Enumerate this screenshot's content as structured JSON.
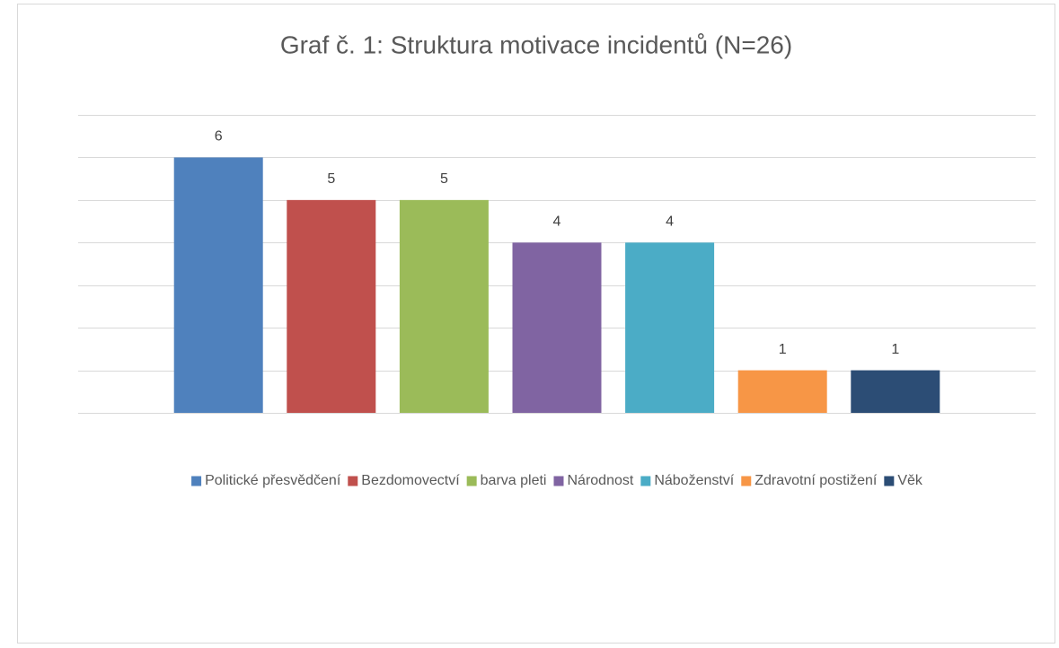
{
  "chart_data": {
    "type": "bar",
    "title": "Graf č. 1: Struktura motivace incidentů (N=26)",
    "series": [
      {
        "name": "Politické přesvědčení",
        "color": "#4f81bd",
        "values": [
          6
        ]
      },
      {
        "name": "Bezdomovectví",
        "color": "#c0504d",
        "values": [
          5
        ]
      },
      {
        "name": "barva pleti",
        "color": "#9bbb59",
        "values": [
          5
        ]
      },
      {
        "name": "Národnost",
        "color": "#8064a2",
        "values": [
          4
        ]
      },
      {
        "name": "Náboženství",
        "color": "#4bacc6",
        "values": [
          4
        ]
      },
      {
        "name": "Zdravotní postižení",
        "color": "#f79646",
        "values": [
          1
        ]
      },
      {
        "name": "Věk",
        "color": "#2c4d75",
        "values": [
          1
        ]
      }
    ],
    "ylim": [
      0,
      7
    ],
    "yticks": [
      0,
      1,
      2,
      3,
      4,
      5,
      6,
      7
    ],
    "grid": true,
    "legend": "bottom"
  }
}
